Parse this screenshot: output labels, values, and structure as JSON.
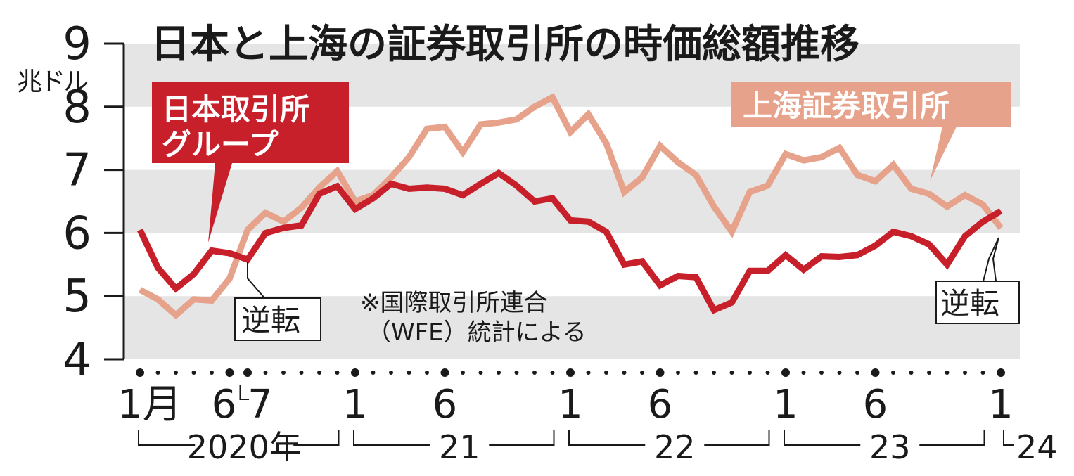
{
  "chart_data": {
    "type": "line",
    "title": "日本と上海の証券取引所の時価総額推移",
    "ylabel": "兆ドル",
    "ylim": [
      4,
      9
    ],
    "yticks": [
      "9",
      "8",
      "7",
      "6",
      "5",
      "4"
    ],
    "grid": "alternating horizontal bands",
    "x_tick_labels": [
      {
        "label": "1月",
        "month": "2020-01"
      },
      {
        "label": "6",
        "month": "2020-06"
      },
      {
        "label": "7",
        "month": "2020-07"
      },
      {
        "label": "1",
        "month": "2021-01"
      },
      {
        "label": "6",
        "month": "2021-06"
      },
      {
        "label": "1",
        "month": "2022-01"
      },
      {
        "label": "6",
        "month": "2022-06"
      },
      {
        "label": "1",
        "month": "2023-01"
      },
      {
        "label": "6",
        "month": "2023-06"
      },
      {
        "label": "1",
        "month": "2024-01"
      }
    ],
    "year_labels": [
      {
        "label": "2020年",
        "from": "2020-01",
        "to": "2020-12"
      },
      {
        "label": "21",
        "from": "2021-01",
        "to": "2021-12"
      },
      {
        "label": "22",
        "from": "2022-01",
        "to": "2022-12"
      },
      {
        "label": "23",
        "from": "2023-01",
        "to": "2023-12"
      },
      {
        "label": "24",
        "from": "2024-01",
        "to": "2024-01"
      }
    ],
    "x": [
      "2020-01",
      "2020-02",
      "2020-03",
      "2020-04",
      "2020-05",
      "2020-06",
      "2020-07",
      "2020-08",
      "2020-09",
      "2020-10",
      "2020-11",
      "2020-12",
      "2021-01",
      "2021-02",
      "2021-03",
      "2021-04",
      "2021-05",
      "2021-06",
      "2021-07",
      "2021-08",
      "2021-09",
      "2021-10",
      "2021-11",
      "2021-12",
      "2022-01",
      "2022-02",
      "2022-03",
      "2022-04",
      "2022-05",
      "2022-06",
      "2022-07",
      "2022-08",
      "2022-09",
      "2022-10",
      "2022-11",
      "2022-12",
      "2023-01",
      "2023-02",
      "2023-03",
      "2023-04",
      "2023-05",
      "2023-06",
      "2023-07",
      "2023-08",
      "2023-09",
      "2023-10",
      "2023-11",
      "2023-12",
      "2024-01"
    ],
    "series": [
      {
        "name": "日本取引所グループ",
        "color": "#c8202b",
        "values": [
          6.05,
          5.45,
          5.12,
          5.35,
          5.72,
          5.68,
          5.58,
          6.0,
          6.08,
          6.12,
          6.62,
          6.74,
          6.38,
          6.55,
          6.78,
          6.7,
          6.72,
          6.7,
          6.6,
          6.78,
          6.95,
          6.75,
          6.5,
          6.55,
          6.2,
          6.18,
          6.02,
          5.5,
          5.55,
          5.17,
          5.32,
          5.3,
          4.78,
          4.9,
          5.4,
          5.4,
          5.65,
          5.42,
          5.63,
          5.62,
          5.65,
          5.8,
          6.02,
          5.95,
          5.82,
          5.5,
          5.95,
          6.18,
          6.35
        ]
      },
      {
        "name": "上海証券取引所",
        "color": "#e6a28a",
        "values": [
          5.1,
          4.95,
          4.7,
          4.95,
          4.93,
          5.28,
          6.05,
          6.32,
          6.18,
          6.4,
          6.72,
          6.98,
          6.5,
          6.6,
          6.88,
          7.2,
          7.65,
          7.68,
          7.28,
          7.72,
          7.75,
          7.8,
          8.0,
          8.15,
          7.6,
          7.88,
          7.42,
          6.65,
          6.88,
          7.38,
          7.12,
          6.92,
          6.42,
          6.02,
          6.65,
          6.75,
          7.25,
          7.15,
          7.2,
          7.35,
          6.92,
          6.82,
          7.08,
          6.7,
          6.62,
          6.42,
          6.6,
          6.45,
          6.08
        ]
      }
    ],
    "annotations": {
      "japan_label": "日本取引所\nグループ",
      "shanghai_label": "上海証券取引所",
      "reversal_label": "逆転",
      "note_line1": "※国際取引所連合",
      "note_line2": "（WFE）統計による"
    },
    "colors": {
      "band": "#e5e5e5",
      "japan": "#c8202b",
      "shanghai": "#e6a28a",
      "axis": "#1a1a1a"
    }
  }
}
